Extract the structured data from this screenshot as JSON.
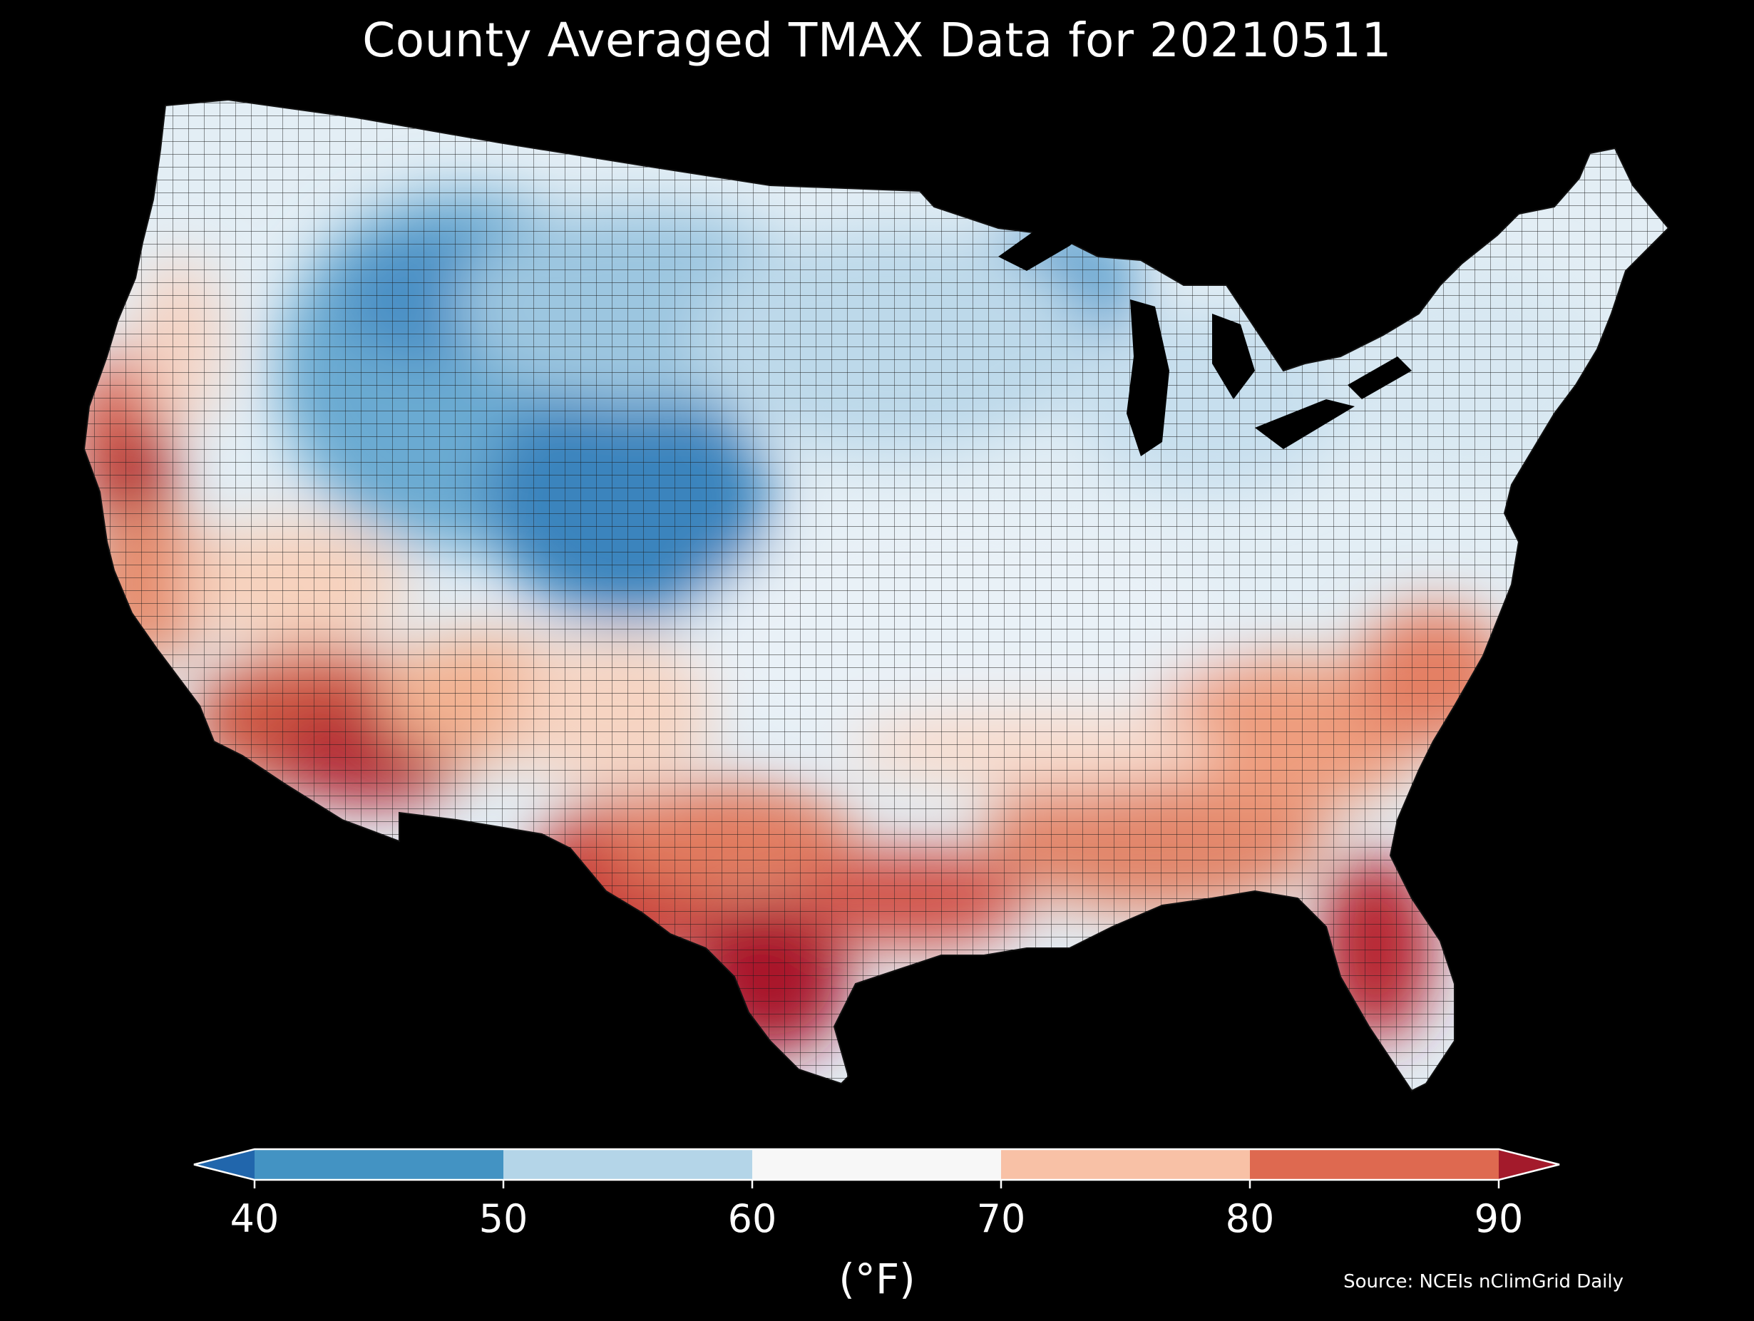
{
  "title": "County Averaged TMAX Data for 20210511",
  "colorbar": {
    "ticks": [
      "40",
      "50",
      "60",
      "70",
      "80",
      "90"
    ],
    "bins": [
      {
        "range": [
          40,
          50
        ],
        "color": "#4393c3"
      },
      {
        "range": [
          50,
          60
        ],
        "color": "#b4d5e8"
      },
      {
        "range": [
          60,
          70
        ],
        "color": "#f7f7f7"
      },
      {
        "range": [
          70,
          80
        ],
        "color": "#f8c1a6"
      },
      {
        "range": [
          80,
          90
        ],
        "color": "#de6950"
      }
    ],
    "under_color": "#2166ac",
    "over_color": "#a31a2b",
    "units": "(°F)"
  },
  "source": "Source: NCEIs nClimGrid Daily",
  "map_colors": {
    "background": "#000000",
    "border": "#222222"
  }
}
